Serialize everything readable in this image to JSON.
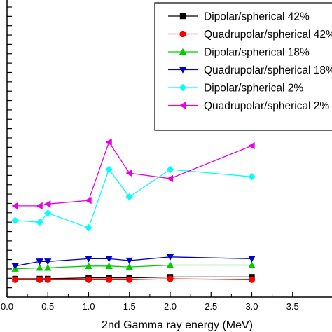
{
  "chart_data": {
    "type": "line",
    "title": "",
    "xlabel": "2nd Gamma ray energy (MeV)",
    "ylabel": "",
    "xlim": [
      0.0,
      4.0
    ],
    "ylim": [
      0,
      16.3
    ],
    "xticks": [
      0.0,
      0.5,
      1.0,
      1.5,
      2.0,
      2.5,
      3.0,
      3.5
    ],
    "xtick_labels": [
      "0.0",
      "0.5",
      "1.0",
      "1.5",
      "2.0",
      "2.5",
      "3.0",
      "3.5"
    ],
    "y_minor_ticks": 31,
    "grid": false,
    "legend_position": "top-right",
    "series": [
      {
        "name": "Dipolar/spherical 42%",
        "marker": "square",
        "color": "#000000",
        "x": [
          0.1,
          0.4,
          0.5,
          1.0,
          1.25,
          1.5,
          2.0,
          3.0
        ],
        "y": [
          1.0,
          1.0,
          1.0,
          1.05,
          1.05,
          1.05,
          1.1,
          1.1
        ]
      },
      {
        "name": "Quadrupolar/spherical 42%",
        "marker": "circle",
        "color": "#ff0000",
        "x": [
          0.1,
          0.4,
          0.5,
          1.0,
          1.25,
          1.5,
          2.0,
          3.0
        ],
        "y": [
          0.95,
          0.95,
          0.95,
          0.95,
          0.95,
          0.95,
          1.0,
          0.95
        ]
      },
      {
        "name": "Dipolar/spherical 18%",
        "marker": "triangle-up",
        "color": "#00cc00",
        "x": [
          0.1,
          0.4,
          0.5,
          1.0,
          1.25,
          1.5,
          2.0,
          3.0
        ],
        "y": [
          1.55,
          1.6,
          1.6,
          1.7,
          1.7,
          1.65,
          1.75,
          1.75
        ]
      },
      {
        "name": "Quadrupolar/spherical 18%",
        "marker": "triangle-down",
        "color": "#0000cc",
        "x": [
          0.1,
          0.4,
          0.5,
          1.0,
          1.25,
          1.5,
          2.0,
          3.0
        ],
        "y": [
          1.7,
          1.95,
          1.95,
          2.1,
          2.1,
          2.0,
          2.2,
          2.1
        ]
      },
      {
        "name": "Dipolar/spherical 2%",
        "marker": "diamond",
        "color": "#00ffff",
        "x": [
          0.1,
          0.4,
          0.5,
          1.0,
          1.25,
          1.5,
          2.0,
          3.0
        ],
        "y": [
          4.2,
          4.1,
          4.6,
          3.8,
          7.0,
          5.5,
          7.0,
          6.6
        ]
      },
      {
        "name": "Quadrupolar/spherical 2%",
        "marker": "triangle-left",
        "color": "#e600e6",
        "x": [
          0.1,
          0.4,
          0.5,
          1.0,
          1.25,
          1.5,
          2.0,
          3.0
        ],
        "y": [
          5.0,
          5.0,
          5.1,
          5.3,
          8.5,
          6.8,
          6.5,
          8.3
        ]
      }
    ]
  }
}
